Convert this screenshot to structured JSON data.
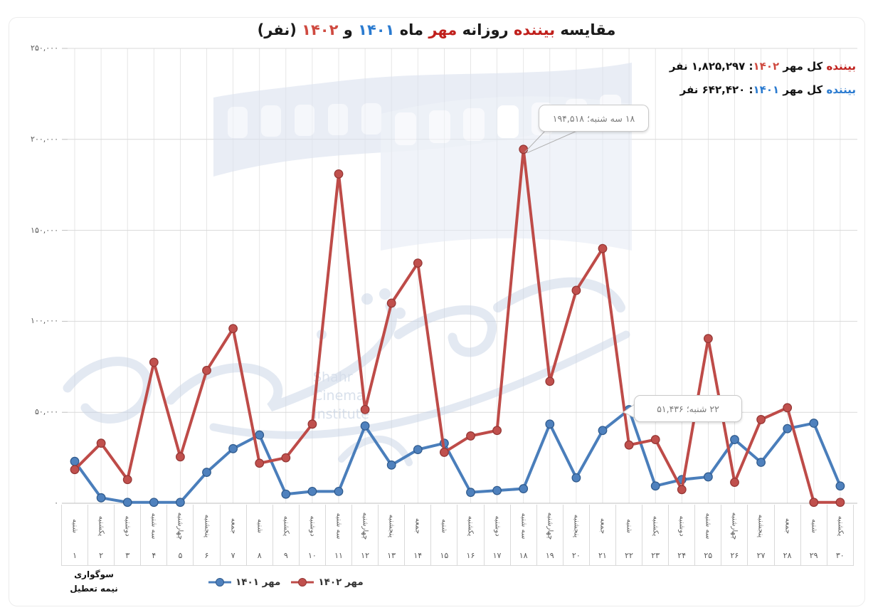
{
  "title": {
    "segments": [
      {
        "text": "مقایسه ",
        "color": "black"
      },
      {
        "text": "بیننده",
        "color": "red"
      },
      {
        "text": " روزانه ",
        "color": "black"
      },
      {
        "text": "مهر",
        "color": "red"
      },
      {
        "text": " ماه ",
        "color": "black"
      },
      {
        "text": "۱۴۰۱",
        "color": "blue"
      },
      {
        "text": " و ",
        "color": "black"
      },
      {
        "text": "۱۴۰۲",
        "color": "red_light"
      },
      {
        "text": " (نفر)",
        "color": "black"
      }
    ]
  },
  "totals": {
    "line_1402": {
      "word": "بیننده",
      "mid": " کل مهر ",
      "year": "۱۴۰۲",
      "sep": ": ",
      "value": "۱,۸۲۵,۲۹۷",
      "unit": " نفر"
    },
    "line_1401": {
      "word": "بیننده",
      "mid": " کل مهر ",
      "year": "۱۴۰۱",
      "sep": ": ",
      "value": "۶۴۲,۴۲۰",
      "unit": " نفر"
    }
  },
  "note": {
    "line1": "سوگواری",
    "line2": "نیمه تعطیل"
  },
  "legend": {
    "item_1401": "مهر ۱۴۰۱",
    "item_1402": "مهر ۱۴۰۲"
  },
  "watermark": {
    "caption_lines": [
      "Shahr",
      "Cinema",
      "Institute"
    ]
  },
  "colors": {
    "red": "#c0201c",
    "red_light": "#cf4a40",
    "blue": "#2b7bd0",
    "series_blue": "#4a7ebb",
    "series_blue_marker": "#4f81bd",
    "series_blue_dark": "#2f5a8c",
    "series_red": "#be4b48",
    "series_red_marker": "#c0504d",
    "series_red_dark": "#943634",
    "gridline": "#d9d9d9",
    "axis_text": "#595959"
  },
  "chart_data": {
    "type": "line",
    "title": "مقایسه بیننده روزانه مهر ماه ۱۴۰۱ و ۱۴۰۲ (نفر)",
    "x": [
      1,
      2,
      3,
      4,
      5,
      6,
      7,
      8,
      9,
      10,
      11,
      12,
      13,
      14,
      15,
      16,
      17,
      18,
      19,
      20,
      21,
      22,
      23,
      24,
      25,
      26,
      27,
      28,
      29,
      30
    ],
    "day_labels": [
      "۱",
      "۲",
      "۳",
      "۴",
      "۵",
      "۶",
      "۷",
      "۸",
      "۹",
      "۱۰",
      "۱۱",
      "۱۲",
      "۱۳",
      "۱۴",
      "۱۵",
      "۱۶",
      "۱۷",
      "۱۸",
      "۱۹",
      "۲۰",
      "۲۱",
      "۲۲",
      "۲۳",
      "۲۴",
      "۲۵",
      "۲۶",
      "۲۷",
      "۲۸",
      "۲۹",
      "۳۰"
    ],
    "weekday_labels": [
      "شنبه",
      "یکشنبه",
      "دوشنبه",
      "سه شنبه",
      "چهارشنبه",
      "پنجشنبه",
      "جمعه",
      "شنبه",
      "یکشنبه",
      "دوشنبه",
      "سه شنبه",
      "چهارشنبه",
      "پنجشنبه",
      "جمعه",
      "شنبه",
      "یکشنبه",
      "دوشنبه",
      "سه شنبه",
      "چهارشنبه",
      "پنجشنبه",
      "جمعه",
      "شنبه",
      "یکشنبه",
      "دوشنبه",
      "سه شنبه",
      "چهارشنبه",
      "پنجشنبه",
      "جمعه",
      "شنبه",
      "یکشنبه"
    ],
    "series": [
      {
        "name": "مهر ۱۴۰۱",
        "key": "mehr-1401",
        "color_key": "blue",
        "values": [
          23000,
          3000,
          500,
          500,
          500,
          17000,
          30000,
          37500,
          5000,
          6500,
          6500,
          42500,
          21000,
          29500,
          33000,
          6000,
          7000,
          8000,
          43500,
          14000,
          40000,
          51436,
          9500,
          13000,
          14500,
          35000,
          22500,
          41000,
          44000,
          9500
        ]
      },
      {
        "name": "مهر ۱۴۰۲",
        "key": "mehr-1402",
        "color_key": "red",
        "values": [
          18500,
          33000,
          13000,
          77500,
          25500,
          73000,
          96000,
          22000,
          25000,
          43500,
          181000,
          51500,
          110000,
          132000,
          28000,
          37000,
          40000,
          194518,
          67000,
          117000,
          140000,
          32000,
          35000,
          7500,
          90500,
          11500,
          46000,
          52500,
          500,
          500
        ]
      }
    ],
    "ylim": [
      0,
      250000
    ],
    "y_ticks": [
      0,
      50000,
      100000,
      150000,
      200000,
      250000
    ],
    "y_tick_labels": [
      "۰",
      "۵۰,۰۰۰",
      "۱۰۰,۰۰۰",
      "۱۵۰,۰۰۰",
      "۲۰۰,۰۰۰",
      "۲۵۰,۰۰۰"
    ],
    "grid": true,
    "legend_position": "bottom",
    "annotations": [
      {
        "day": 18,
        "series": "مهر ۱۴۰۲",
        "value": 194518,
        "text": "۱۸ سه شنبه؛ ۱۹۴,۵۱۸"
      },
      {
        "day": 22,
        "series": "مهر ۱۴۰۱",
        "value": 51436,
        "text": "۲۲ شنبه؛ ۵۱,۴۳۶"
      }
    ]
  }
}
